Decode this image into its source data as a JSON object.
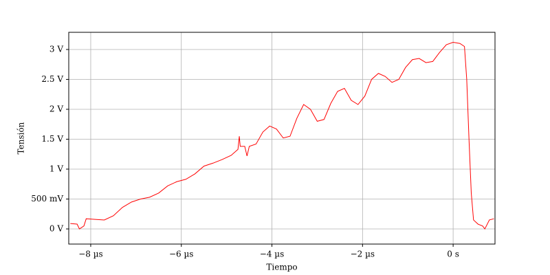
{
  "chart_data": {
    "type": "line",
    "xlabel": "Tiempo",
    "ylabel": "Tensión",
    "x": [
      -8.45,
      -8.3,
      -8.25,
      -8.15,
      -8.1,
      -7.9,
      -7.7,
      -7.5,
      -7.3,
      -7.1,
      -6.9,
      -6.7,
      -6.5,
      -6.3,
      -6.1,
      -5.9,
      -5.7,
      -5.5,
      -5.3,
      -5.1,
      -4.9,
      -4.75,
      -4.72,
      -4.7,
      -4.6,
      -4.55,
      -4.5,
      -4.35,
      -4.2,
      -4.05,
      -3.9,
      -3.75,
      -3.6,
      -3.45,
      -3.3,
      -3.15,
      -3.0,
      -2.85,
      -2.7,
      -2.55,
      -2.4,
      -2.25,
      -2.1,
      -1.95,
      -1.8,
      -1.65,
      -1.5,
      -1.35,
      -1.2,
      -1.05,
      -0.9,
      -0.75,
      -0.6,
      -0.45,
      -0.3,
      -0.15,
      0,
      0.15,
      0.25,
      0.3,
      0.35,
      0.4,
      0.45,
      0.55,
      0.65,
      0.7,
      0.8,
      0.9
    ],
    "values": [
      0.09,
      0.08,
      0.0,
      0.05,
      0.17,
      0.16,
      0.15,
      0.22,
      0.36,
      0.45,
      0.5,
      0.53,
      0.6,
      0.72,
      0.79,
      0.83,
      0.92,
      1.05,
      1.1,
      1.16,
      1.23,
      1.33,
      1.55,
      1.38,
      1.38,
      1.22,
      1.38,
      1.42,
      1.62,
      1.72,
      1.67,
      1.52,
      1.55,
      1.85,
      2.08,
      2.0,
      1.8,
      1.83,
      2.1,
      2.3,
      2.35,
      2.15,
      2.08,
      2.22,
      2.5,
      2.6,
      2.55,
      2.45,
      2.5,
      2.7,
      2.83,
      2.85,
      2.78,
      2.8,
      2.95,
      3.08,
      3.12,
      3.1,
      3.05,
      2.5,
      1.5,
      0.6,
      0.15,
      0.08,
      0.05,
      0.0,
      0.15,
      0.17
    ],
    "color": "#ff0000",
    "xlim": [
      -8.485,
      0.924
    ],
    "xticks": [
      {
        "value": -8,
        "label": "−8 µs"
      },
      {
        "value": -6,
        "label": "−6 µs"
      },
      {
        "value": -4,
        "label": "−4 µs"
      },
      {
        "value": -2,
        "label": "−2 µs"
      },
      {
        "value": 0,
        "label": "0 s"
      }
    ],
    "ylim": [
      -0.253,
      3.287
    ],
    "yticks": [
      {
        "value": 0,
        "label": "0 V"
      },
      {
        "value": 0.5,
        "label": "500 mV"
      },
      {
        "value": 1,
        "label": "1 V"
      },
      {
        "value": 1.5,
        "label": "1.5 V"
      },
      {
        "value": 2,
        "label": "2 V"
      },
      {
        "value": 2.5,
        "label": "2.5 V"
      },
      {
        "value": 3,
        "label": "3 V"
      }
    ],
    "grid": true
  }
}
